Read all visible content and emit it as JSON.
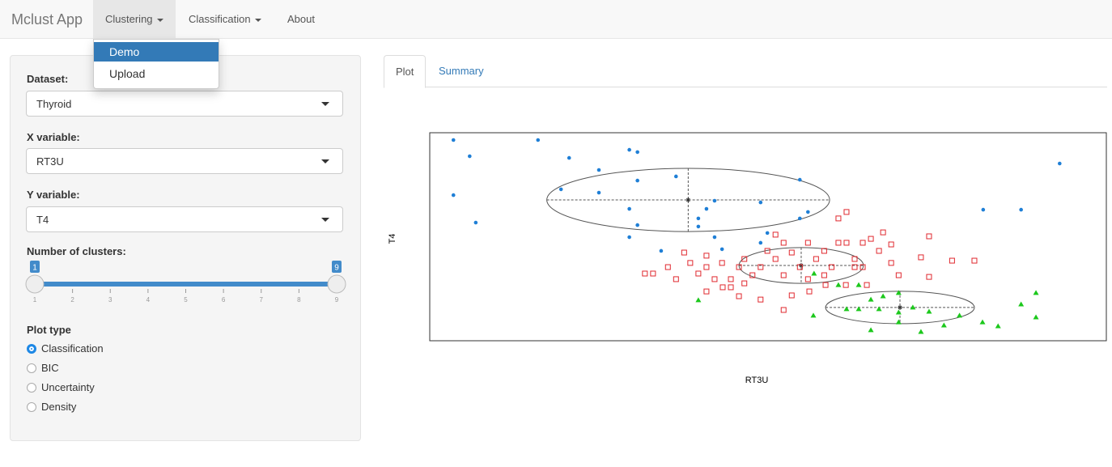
{
  "navbar": {
    "brand": "Mclust App",
    "menus": [
      "Clustering",
      "Classification",
      "About"
    ],
    "dropdown": {
      "items": [
        "Demo",
        "Upload"
      ],
      "highlighted": 0
    }
  },
  "sidebar": {
    "dataset": {
      "label": "Dataset:",
      "value": "Thyroid"
    },
    "x_variable": {
      "label": "X variable:",
      "value": "RT3U"
    },
    "y_variable": {
      "label": "Y variable:",
      "value": "T4"
    },
    "clusters": {
      "label": "Number of clusters:",
      "min": 1,
      "max": 9,
      "from": 1,
      "to": 9,
      "ticks": [
        1,
        2,
        3,
        4,
        5,
        6,
        7,
        8,
        9
      ]
    },
    "plot_type": {
      "label": "Plot type",
      "options": [
        "Classification",
        "BIC",
        "Uncertainty",
        "Density"
      ],
      "selected": 0
    }
  },
  "tabs": {
    "items": [
      "Plot",
      "Summary"
    ],
    "active": 0
  },
  "chart_data": {
    "type": "scatter",
    "x_label": "RT3U",
    "y_label": "T4",
    "xlim": [
      0,
      100
    ],
    "ylim": [
      0,
      100
    ],
    "series": [
      {
        "marker": "circle",
        "color": "#1f7fd6",
        "x": [
          3.5,
          5.9,
          16.0,
          20.6,
          29.5,
          30.7,
          25.0,
          30.7,
          36.4,
          19.4,
          25.0,
          3.5,
          29.5,
          30.7,
          6.8,
          39.7,
          39.7,
          40.9,
          42.1,
          48.9,
          54.7,
          55.9,
          54.7,
          29.5,
          34.2,
          42.1,
          43.2,
          48.9,
          49.9,
          81.8,
          87.4,
          93.1
        ],
        "values": [
          96.5,
          88.7,
          96.5,
          87.9,
          91.8,
          90.7,
          82.1,
          77.0,
          79.0,
          72.8,
          71.2,
          70.0,
          63.4,
          55.6,
          56.8,
          58.8,
          54.9,
          63.4,
          67.3,
          66.5,
          77.4,
          61.9,
          58.8,
          49.8,
          43.2,
          49.8,
          44.0,
          47.1,
          51.8,
          63.0,
          63.0,
          85.2
        ]
      },
      {
        "marker": "square",
        "color": "#e0282e",
        "x": [
          31.8,
          33.0,
          35.2,
          36.4,
          37.6,
          38.5,
          39.7,
          40.9,
          40.9,
          42.1,
          43.2,
          44.5,
          44.5,
          45.7,
          46.5,
          46.5,
          47.7,
          48.9,
          49.9,
          51.1,
          51.1,
          52.3,
          52.3,
          53.5,
          53.5,
          54.7,
          55.9,
          55.9,
          57.1,
          58.3,
          58.3,
          59.4,
          60.4,
          61.6,
          61.6,
          62.8,
          64.0,
          65.2,
          66.4,
          67.0,
          68.2,
          68.2,
          69.3,
          72.6,
          73.8,
          77.2,
          80.5,
          73.8,
          40.9,
          43.3,
          45.7,
          48.9,
          52.3,
          56.1,
          58.5,
          61.5,
          64.6,
          60.4,
          62.8,
          64.0
        ],
        "values": [
          32.3,
          32.3,
          35.4,
          29.6,
          42.4,
          37.4,
          32.3,
          40.9,
          35.4,
          29.6,
          37.4,
          29.6,
          25.7,
          35.4,
          39.3,
          27.6,
          31.5,
          35.4,
          43.2,
          51.0,
          39.3,
          47.1,
          31.5,
          42.4,
          21.8,
          35.4,
          47.1,
          29.6,
          39.3,
          43.2,
          31.5,
          35.4,
          58.8,
          61.9,
          47.1,
          39.3,
          47.1,
          49.0,
          43.2,
          52.1,
          46.3,
          37.4,
          31.5,
          40.1,
          50.2,
          38.5,
          38.5,
          30.7,
          23.7,
          25.7,
          21.4,
          19.8,
          14.8,
          23.7,
          26.8,
          26.8,
          26.8,
          47.1,
          35.4,
          35.4
        ]
      },
      {
        "marker": "triangle",
        "color": "#1cc81c",
        "x": [
          39.7,
          56.8,
          60.4,
          63.4,
          65.2,
          63.4,
          66.4,
          67.0,
          69.3,
          69.3,
          71.4,
          73.8,
          65.2,
          69.3,
          72.6,
          76.0,
          78.3,
          81.7,
          84.0,
          87.4,
          89.6,
          89.6,
          56.7,
          61.6
        ],
        "values": [
          19.5,
          32.3,
          26.8,
          26.8,
          19.8,
          15.2,
          15.2,
          21.4,
          23.0,
          13.6,
          16.0,
          14.0,
          5.1,
          8.9,
          4.3,
          7.4,
          12.1,
          8.9,
          7.0,
          17.5,
          23.0,
          11.3,
          12.1,
          15.2
        ]
      }
    ],
    "ellipses": {
      "cx": [
        38.2,
        54.9,
        69.5
      ],
      "cy": [
        67.7,
        36.2,
        16.0
      ],
      "rx": [
        20.9,
        9.2,
        11.0
      ],
      "ry": [
        15.2,
        8.6,
        7.8
      ]
    }
  }
}
